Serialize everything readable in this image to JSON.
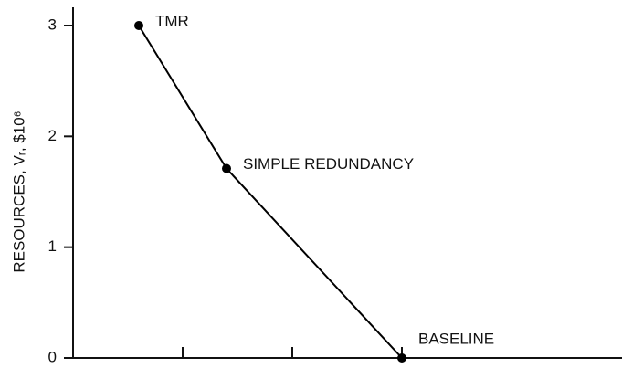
{
  "chart_data": {
    "type": "line",
    "ylabel": "RESOURCES, Vᵣ, $10⁶",
    "x": [
      0.6,
      1.4,
      3.0
    ],
    "series": [
      {
        "color": "#000000",
        "values": [
          3.0,
          1.71,
          0.0
        ],
        "labels": [
          "TMR",
          "SIMPLE REDUNDANCY",
          "BASELINE"
        ]
      }
    ],
    "xlim": [
      0,
      5
    ],
    "xticks": [
      1,
      2,
      3
    ],
    "ylim": [
      0,
      3
    ],
    "yticks": [
      0,
      1,
      2,
      3
    ],
    "grid": false
  }
}
